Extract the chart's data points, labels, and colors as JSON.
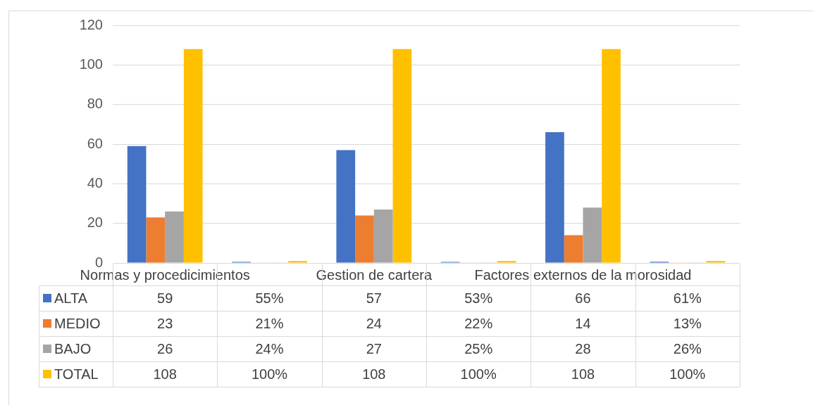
{
  "chart_data": {
    "type": "bar",
    "categories": [
      "Normas y procedicimientos",
      null,
      "Gestion de cartera",
      null,
      "Factores externos de la morosidad",
      null
    ],
    "series": [
      {
        "name": "ALTA",
        "color": "#4472c4",
        "values": [
          59,
          0.55,
          57,
          0.53,
          66,
          0.61
        ],
        "value_labels": [
          "59",
          "55%",
          "57",
          "53%",
          "66",
          "61%"
        ]
      },
      {
        "name": "MEDIO",
        "color": "#ed7d31",
        "values": [
          23,
          0.21,
          24,
          0.22,
          14,
          0.13
        ],
        "value_labels": [
          "23",
          "21%",
          "24",
          "22%",
          "14",
          "13%"
        ]
      },
      {
        "name": "BAJO",
        "color": "#a5a5a5",
        "values": [
          26,
          0.24,
          27,
          0.25,
          28,
          0.26
        ],
        "value_labels": [
          "26",
          "24%",
          "27",
          "25%",
          "28",
          "26%"
        ]
      },
      {
        "name": "TOTAL",
        "color": "#ffc000",
        "values": [
          108,
          1,
          108,
          1,
          108,
          1
        ],
        "value_labels": [
          "108",
          "100%",
          "108",
          "100%",
          "108",
          "100%"
        ]
      }
    ],
    "ylim": [
      0,
      120
    ],
    "yticks": [
      0,
      20,
      40,
      60,
      80,
      100,
      120
    ],
    "grid": "y",
    "legend": "bottom"
  }
}
